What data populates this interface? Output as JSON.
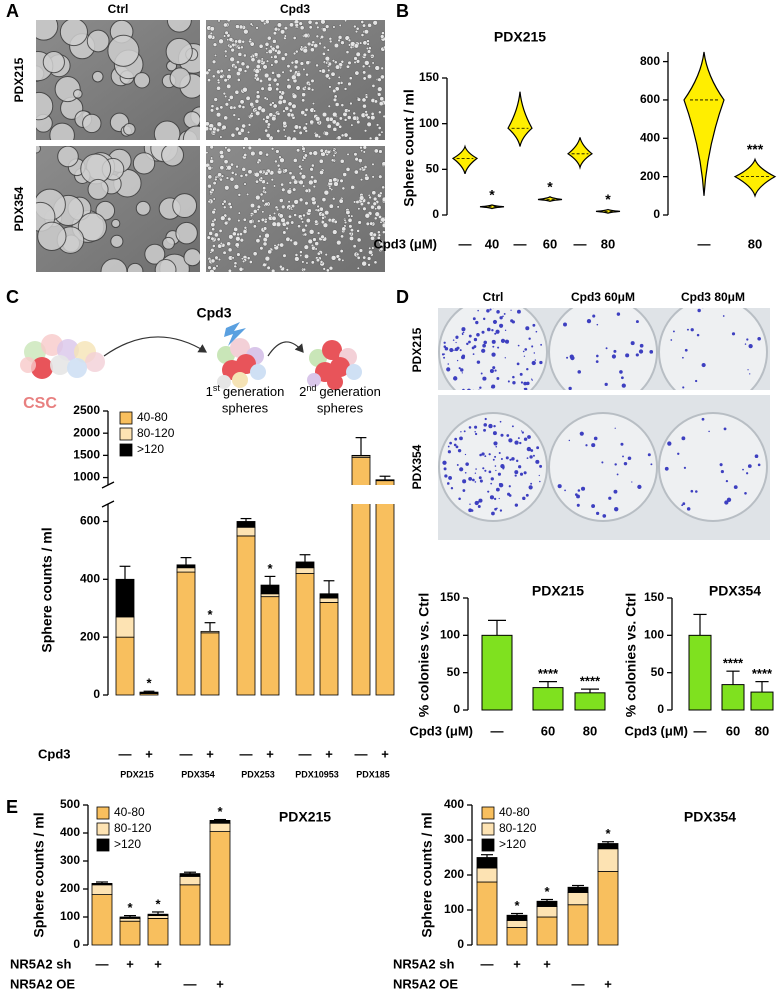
{
  "panel_labels": [
    "A",
    "B",
    "C",
    "D",
    "E"
  ],
  "panel_a": {
    "columns": [
      "Ctrl",
      "Cpd3"
    ],
    "rows": [
      "PDX215",
      "PDX354"
    ]
  },
  "panel_c_diagram": {
    "treatment": "Cpd3",
    "source": "CSC",
    "stage1": {
      "number": "1",
      "suffix": "st",
      "label": "generation",
      "line2": "spheres"
    },
    "stage2": {
      "number": "2",
      "suffix": "nd",
      "label": "generation",
      "line2": "spheres"
    }
  },
  "panel_d_plates": {
    "columns": [
      "Ctrl",
      "Cpd3 60μM",
      "Cpd3 80μM"
    ],
    "rows": [
      "PDX215",
      "PDX354"
    ]
  },
  "chart_data": [
    {
      "type": "violin",
      "title": "PDX215",
      "ylabel": "Sphere count / ml",
      "xlabel": "Cpd3 (μM)",
      "categories": [
        "—",
        "40",
        "—",
        "60",
        "—",
        "80"
      ],
      "values": [
        62,
        9,
        95,
        17,
        67,
        4
      ],
      "min": [
        45,
        7,
        75,
        15,
        52,
        2
      ],
      "max": [
        75,
        11,
        135,
        20,
        85,
        6
      ],
      "significance": [
        null,
        "*",
        null,
        "*",
        null,
        "*"
      ],
      "color": "#ffee00",
      "ylim": [
        0,
        150
      ],
      "yticks": [
        0,
        50,
        100,
        150
      ]
    },
    {
      "type": "violin",
      "categories": [
        "—",
        "80"
      ],
      "values": [
        600,
        200
      ],
      "min": [
        100,
        100
      ],
      "max": [
        850,
        290
      ],
      "significance": [
        null,
        "***"
      ],
      "color": "#ffee00",
      "ylim": [
        0,
        850
      ],
      "yticks": [
        0,
        200,
        400,
        600,
        800
      ]
    },
    {
      "type": "stacked_bar",
      "ylabel": "Sphere counts / ml",
      "xlabel": "Cpd3",
      "categories": [
        "—",
        "+",
        "—",
        "+",
        "—",
        "+",
        "—",
        "+",
        "—",
        "+"
      ],
      "groups": [
        "PDX215",
        "PDX354",
        "PDX253",
        "PDX10953",
        "PDX185"
      ],
      "series": [
        {
          "name": "40-80",
          "color": "#f8bf5e",
          "values": [
            200,
            5,
            425,
            215,
            550,
            340,
            420,
            320,
            1450,
            930
          ]
        },
        {
          "name": "80-120",
          "color": "#fde3b3",
          "values": [
            70,
            2,
            15,
            5,
            30,
            10,
            20,
            15,
            40,
            15
          ]
        },
        {
          "name": ">120",
          "color": "#000000",
          "values": [
            130,
            3,
            10,
            0,
            20,
            30,
            20,
            15,
            10,
            5
          ]
        }
      ],
      "errors": [
        45,
        3,
        25,
        30,
        10,
        30,
        25,
        45,
        400,
        80
      ],
      "significance": [
        null,
        "*",
        null,
        "*",
        null,
        "*",
        null,
        null,
        null,
        null
      ],
      "ylim": [
        0,
        2500
      ],
      "ybreak": [
        650,
        900
      ],
      "yticks": [
        0,
        200,
        400,
        600,
        1000,
        1500,
        2000,
        2500
      ],
      "legend": "upper left"
    },
    {
      "type": "bar",
      "title": "PDX215",
      "ylabel": "% colonies vs. Ctrl",
      "xlabel": "Cpd3 (μM)",
      "categories": [
        "—",
        "60",
        "80"
      ],
      "values": [
        100,
        30,
        23
      ],
      "errors": [
        20,
        8,
        5
      ],
      "significance": [
        null,
        "****",
        "****"
      ],
      "color": "#7fe11f",
      "ylim": [
        0,
        150
      ],
      "yticks": [
        0,
        50,
        100,
        150
      ]
    },
    {
      "type": "bar",
      "title": "PDX354",
      "ylabel": "% colonies vs. Ctrl",
      "xlabel": "Cpd3 (μM)",
      "categories": [
        "—",
        "60",
        "80"
      ],
      "values": [
        100,
        34,
        24
      ],
      "errors": [
        28,
        18,
        14
      ],
      "significance": [
        null,
        "****",
        "****"
      ],
      "color": "#7fe11f",
      "ylim": [
        0,
        150
      ],
      "yticks": [
        0,
        50,
        100,
        150
      ]
    },
    {
      "type": "stacked_bar",
      "title": "PDX215",
      "ylabel": "Sphere counts / ml",
      "rows": [
        {
          "name": "NR5A2 sh",
          "values": [
            "—",
            "+",
            "+",
            null,
            null
          ]
        },
        {
          "name": "NR5A2 OE",
          "values": [
            null,
            null,
            null,
            "—",
            "+"
          ]
        }
      ],
      "series": [
        {
          "name": "40-80",
          "color": "#f8bf5e",
          "values": [
            180,
            85,
            95,
            215,
            405
          ]
        },
        {
          "name": "80-120",
          "color": "#fde3b3",
          "values": [
            35,
            10,
            10,
            30,
            30
          ]
        },
        {
          "name": ">120",
          "color": "#000000",
          "values": [
            5,
            5,
            5,
            10,
            10
          ]
        }
      ],
      "errors": [
        5,
        5,
        8,
        5,
        3
      ],
      "significance": [
        null,
        "*",
        "*",
        null,
        "*"
      ],
      "ylim": [
        0,
        500
      ],
      "yticks": [
        0,
        100,
        200,
        300,
        400,
        500
      ],
      "legend": "upper left"
    },
    {
      "type": "stacked_bar",
      "title": "PDX354",
      "ylabel": "Sphere counts / ml",
      "rows": [
        {
          "name": "NR5A2 sh",
          "values": [
            "—",
            "+",
            "+",
            null,
            null
          ]
        },
        {
          "name": "NR5A2 OE",
          "values": [
            null,
            null,
            null,
            "—",
            "+"
          ]
        }
      ],
      "series": [
        {
          "name": "40-80",
          "color": "#f8bf5e",
          "values": [
            180,
            50,
            80,
            115,
            210
          ]
        },
        {
          "name": "80-120",
          "color": "#fde3b3",
          "values": [
            40,
            20,
            30,
            35,
            65
          ]
        },
        {
          "name": ">120",
          "color": "#000000",
          "values": [
            30,
            15,
            15,
            15,
            15
          ]
        }
      ],
      "errors": [
        8,
        5,
        5,
        5,
        5
      ],
      "significance": [
        null,
        "*",
        "*",
        null,
        "*"
      ],
      "ylim": [
        0,
        400
      ],
      "yticks": [
        0,
        100,
        200,
        300,
        400
      ],
      "legend": "upper left"
    }
  ]
}
